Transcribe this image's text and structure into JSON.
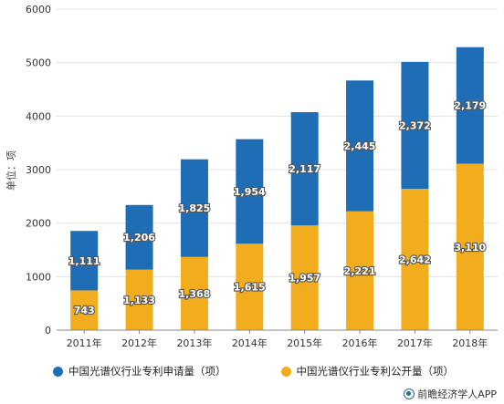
{
  "chart_data": {
    "type": "bar",
    "stacked": true,
    "categories": [
      "2011年",
      "2012年",
      "2013年",
      "2014年",
      "2015年",
      "2016年",
      "2017年",
      "2018年"
    ],
    "series": [
      {
        "name": "中国光谱仪行业专利公开量（项）",
        "color": "#f2ad1f",
        "values": [
          743,
          1133,
          1368,
          1615,
          1957,
          2221,
          2642,
          3110
        ]
      },
      {
        "name": "中国光谱仪行业专利申请量（项）",
        "color": "#1f6db4",
        "values": [
          1111,
          1206,
          1825,
          1954,
          2117,
          2445,
          2372,
          2179
        ]
      }
    ],
    "ylabel": "单位：项",
    "ylim": [
      0,
      6000
    ],
    "yticks": [
      0,
      1000,
      2000,
      3000,
      4000,
      5000,
      6000
    ],
    "grid": true,
    "legend_position": "bottom"
  },
  "legend": {
    "item1": "中国光谱仪行业专利申请量（项）",
    "item2": "中国光谱仪行业专利公开量（项）"
  },
  "source": "前瞻经济学人APP"
}
